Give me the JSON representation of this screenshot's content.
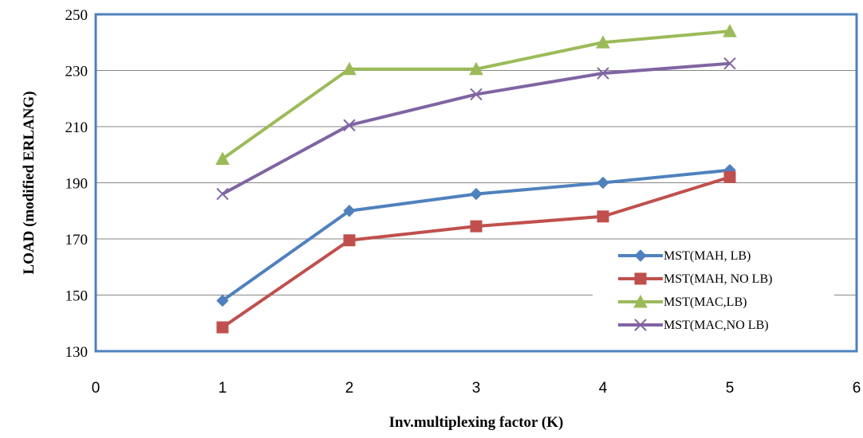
{
  "chart_data": {
    "type": "line",
    "xlabel": "Inv.multiplexing factor (K)",
    "ylabel": "LOAD (modified ERLANG)",
    "xlim": [
      0,
      6
    ],
    "ylim": [
      130,
      250
    ],
    "x_ticks": [
      "0",
      "1",
      "2",
      "3",
      "4",
      "5",
      "6"
    ],
    "y_ticks": [
      "130",
      "150",
      "170",
      "190",
      "210",
      "230",
      "250"
    ],
    "grid": "horizontal",
    "legend_position": "bottom-right",
    "x": [
      1,
      2,
      3,
      4,
      5
    ],
    "series": [
      {
        "name": "MST(MAH, LB)",
        "color": "#4f81bd",
        "marker": "diamond",
        "values": [
          148,
          180,
          186,
          190,
          194.5
        ]
      },
      {
        "name": "MST(MAH, NO LB)",
        "color": "#c0504d",
        "marker": "square",
        "values": [
          138.5,
          169.5,
          174.5,
          178,
          192
        ]
      },
      {
        "name": "MST(MAC,LB)",
        "color": "#9bbb59",
        "marker": "triangle",
        "values": [
          198.5,
          230.5,
          230.5,
          240,
          244
        ]
      },
      {
        "name": "MST(MAC,NO LB)",
        "color": "#8064a2",
        "marker": "x",
        "values": [
          186,
          210.5,
          221.5,
          229,
          232.5
        ]
      }
    ]
  }
}
